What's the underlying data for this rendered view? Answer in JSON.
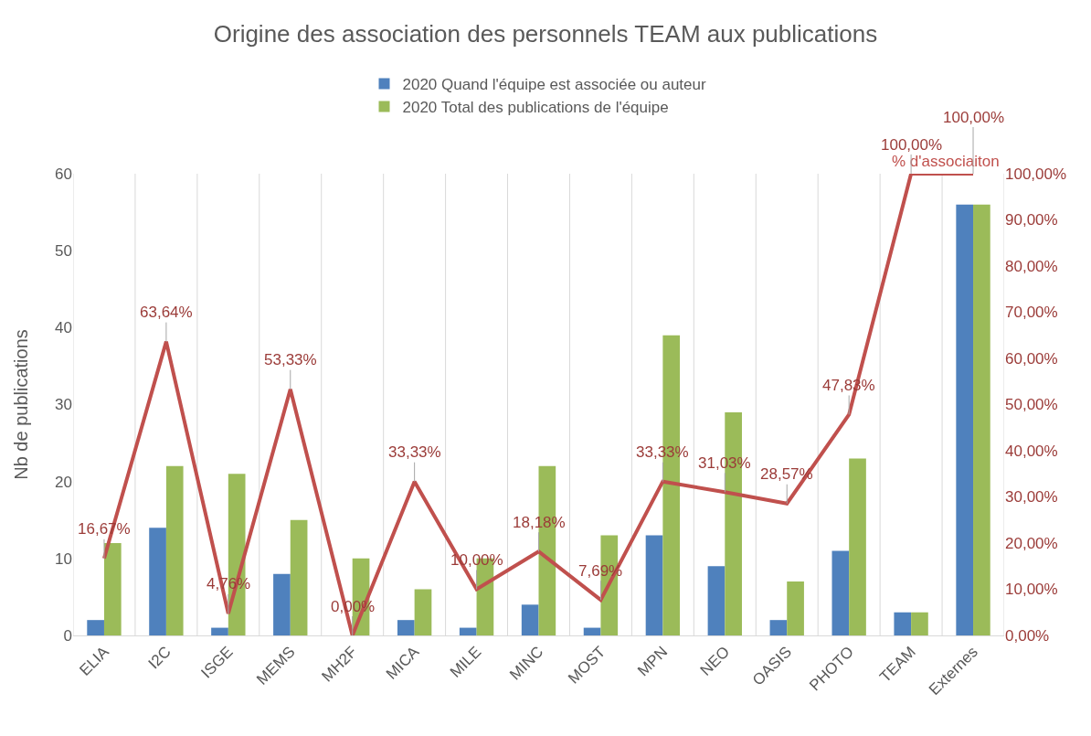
{
  "chart_data": {
    "type": "bar",
    "title": "Origine des association des personnels TEAM aux publications",
    "ylabel": "Nb de publications",
    "categories": [
      "ELIA",
      "I2C",
      "ISGE",
      "MEMS",
      "MH2F",
      "MICA",
      "MILE",
      "MINC",
      "MOST",
      "MPN",
      "NEO",
      "OASIS",
      "PHOTO",
      "TEAM",
      "Externes"
    ],
    "series": [
      {
        "name": "2020 Quand l'équipe est associée ou auteur",
        "color": "#4f81bd",
        "values": [
          2,
          14,
          1,
          8,
          0,
          2,
          1,
          4,
          1,
          13,
          9,
          2,
          11,
          3,
          56
        ]
      },
      {
        "name": "2020 Total des publications de l'équipe",
        "color": "#9bbb59",
        "values": [
          12,
          22,
          21,
          15,
          10,
          6,
          10,
          22,
          13,
          39,
          29,
          7,
          23,
          3,
          56
        ]
      },
      {
        "name": "% d'associaiton",
        "type": "line",
        "axis": "y2",
        "color": "#c0504d",
        "values": [
          16.67,
          63.64,
          4.76,
          53.33,
          0,
          33.33,
          10,
          18.18,
          7.69,
          33.33,
          31.03,
          28.57,
          47.83,
          100,
          100
        ],
        "value_labels": [
          "16,67%",
          "63,64%",
          "4,76%",
          "53,33%",
          "0,00%",
          "33,33%",
          "10,00%",
          "18,18%",
          "7,69%",
          "33,33%",
          "31,03%",
          "28,57%",
          "47,83%",
          "100,00%",
          "100,00%"
        ]
      }
    ],
    "ylim": [
      0,
      60
    ],
    "yticks": [
      0,
      10,
      20,
      30,
      40,
      50,
      60
    ],
    "y2lim": [
      0,
      100
    ],
    "y2ticks": [
      {
        "value": 0,
        "label": "0,00%"
      },
      {
        "value": 10,
        "label": "10,00%"
      },
      {
        "value": 20,
        "label": "20,00%"
      },
      {
        "value": 30,
        "label": "30,00%"
      },
      {
        "value": 40,
        "label": "40,00%"
      },
      {
        "value": 50,
        "label": "50,00%"
      },
      {
        "value": 60,
        "label": "60,00%"
      },
      {
        "value": 70,
        "label": "70,00%"
      },
      {
        "value": 80,
        "label": "80,00%"
      },
      {
        "value": 90,
        "label": "90,00%"
      },
      {
        "value": 100,
        "label": "100,00%"
      }
    ],
    "grid": "x",
    "legend": "top",
    "marker": "none",
    "line_style": "solid"
  }
}
